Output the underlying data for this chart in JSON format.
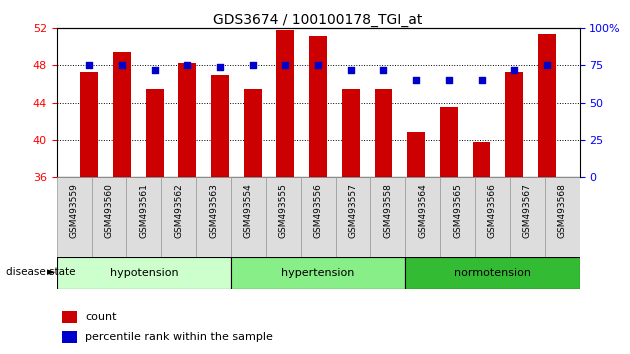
{
  "title": "GDS3674 / 100100178_TGI_at",
  "samples": [
    "GSM493559",
    "GSM493560",
    "GSM493561",
    "GSM493562",
    "GSM493563",
    "GSM493554",
    "GSM493555",
    "GSM493556",
    "GSM493557",
    "GSM493558",
    "GSM493564",
    "GSM493565",
    "GSM493566",
    "GSM493567",
    "GSM493568"
  ],
  "bar_values": [
    47.3,
    49.5,
    45.5,
    48.3,
    47.0,
    45.5,
    51.8,
    51.2,
    45.5,
    45.5,
    40.8,
    43.5,
    39.8,
    47.3,
    51.4
  ],
  "percentile_ranks": [
    75,
    75,
    72,
    75,
    74,
    75,
    75,
    75,
    72,
    72,
    65,
    65,
    65,
    72,
    75
  ],
  "bar_color": "#cc0000",
  "percentile_color": "#0000cc",
  "ylim_left": [
    36,
    52
  ],
  "ylim_right": [
    0,
    100
  ],
  "yticks_left": [
    36,
    40,
    44,
    48,
    52
  ],
  "yticks_right": [
    0,
    25,
    50,
    75,
    100
  ],
  "ytick_labels_right": [
    "0",
    "25",
    "50",
    "75",
    "100%"
  ],
  "hlines": [
    40,
    44,
    48
  ],
  "groups": [
    {
      "label": "hypotension",
      "start": 0,
      "end": 5,
      "color": "#ccffcc"
    },
    {
      "label": "hypertension",
      "start": 5,
      "end": 10,
      "color": "#88ee88"
    },
    {
      "label": "normotension",
      "start": 10,
      "end": 15,
      "color": "#33bb33"
    }
  ],
  "disease_state_label": "disease state",
  "legend_count_label": "count",
  "legend_percentile_label": "percentile rank within the sample",
  "background_color": "#ffffff",
  "xtick_bg_color": "#dddddd",
  "bar_bottom": 36
}
